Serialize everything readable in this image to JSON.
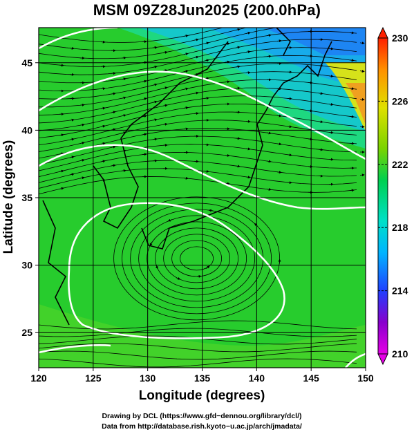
{
  "title": "MSM 09Z28Jun2025 (200.0hPa)",
  "map": {
    "x_axis_label": "Longitude (degrees)",
    "y_axis_label": "Latitude  (degrees)",
    "x_ticks": [
      "120",
      "125",
      "130",
      "135",
      "140",
      "145",
      "150"
    ],
    "y_ticks": [
      "25",
      "30",
      "35",
      "40",
      "45"
    ],
    "lon_range": [
      120,
      150
    ],
    "lat_range": [
      22.4,
      47.6
    ],
    "circulation_center": {
      "lon": 134.5,
      "lat": 30.5
    }
  },
  "colorbar": {
    "ticks": [
      "230",
      "226",
      "222",
      "218",
      "214",
      "210"
    ],
    "range": [
      210,
      230
    ],
    "colors": [
      "#e600e6",
      "#8800cc",
      "#2040ff",
      "#00b4ff",
      "#00e0c8",
      "#00d050",
      "#7ad300",
      "#e0e000",
      "#ff9000",
      "#ff2000"
    ]
  },
  "credits": {
    "line1": "Drawing by DCL (https://www.gfd−dennou.org/library/dcl/)",
    "line2": "Data from http://database.rish.kyoto−u.ac.jp/arch/jmadata/"
  }
}
